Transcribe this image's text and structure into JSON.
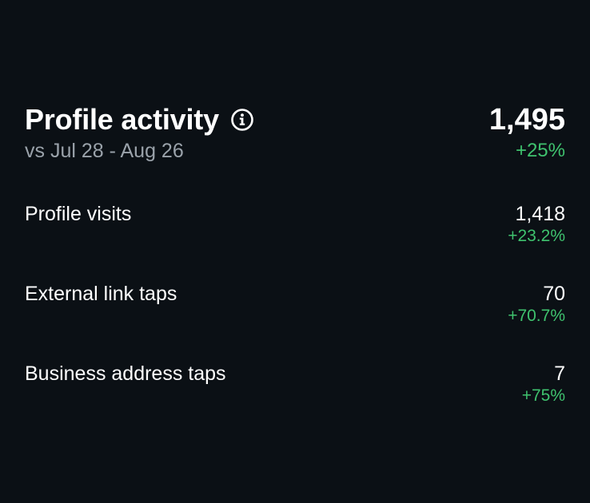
{
  "header": {
    "title": "Profile activity",
    "subtitle": "vs Jul 28 - Aug 26",
    "total": "1,495",
    "total_change": "+25%",
    "info_icon": "info-icon"
  },
  "rows": [
    {
      "label": "Profile visits",
      "value": "1,418",
      "change": "+23.2%"
    },
    {
      "label": "External link taps",
      "value": "70",
      "change": "+70.7%"
    },
    {
      "label": "Business address taps",
      "value": "7",
      "change": "+75%"
    }
  ],
  "colors": {
    "background": "#0b1015",
    "positive": "#3fc26e",
    "muted": "#9aa2aa"
  }
}
